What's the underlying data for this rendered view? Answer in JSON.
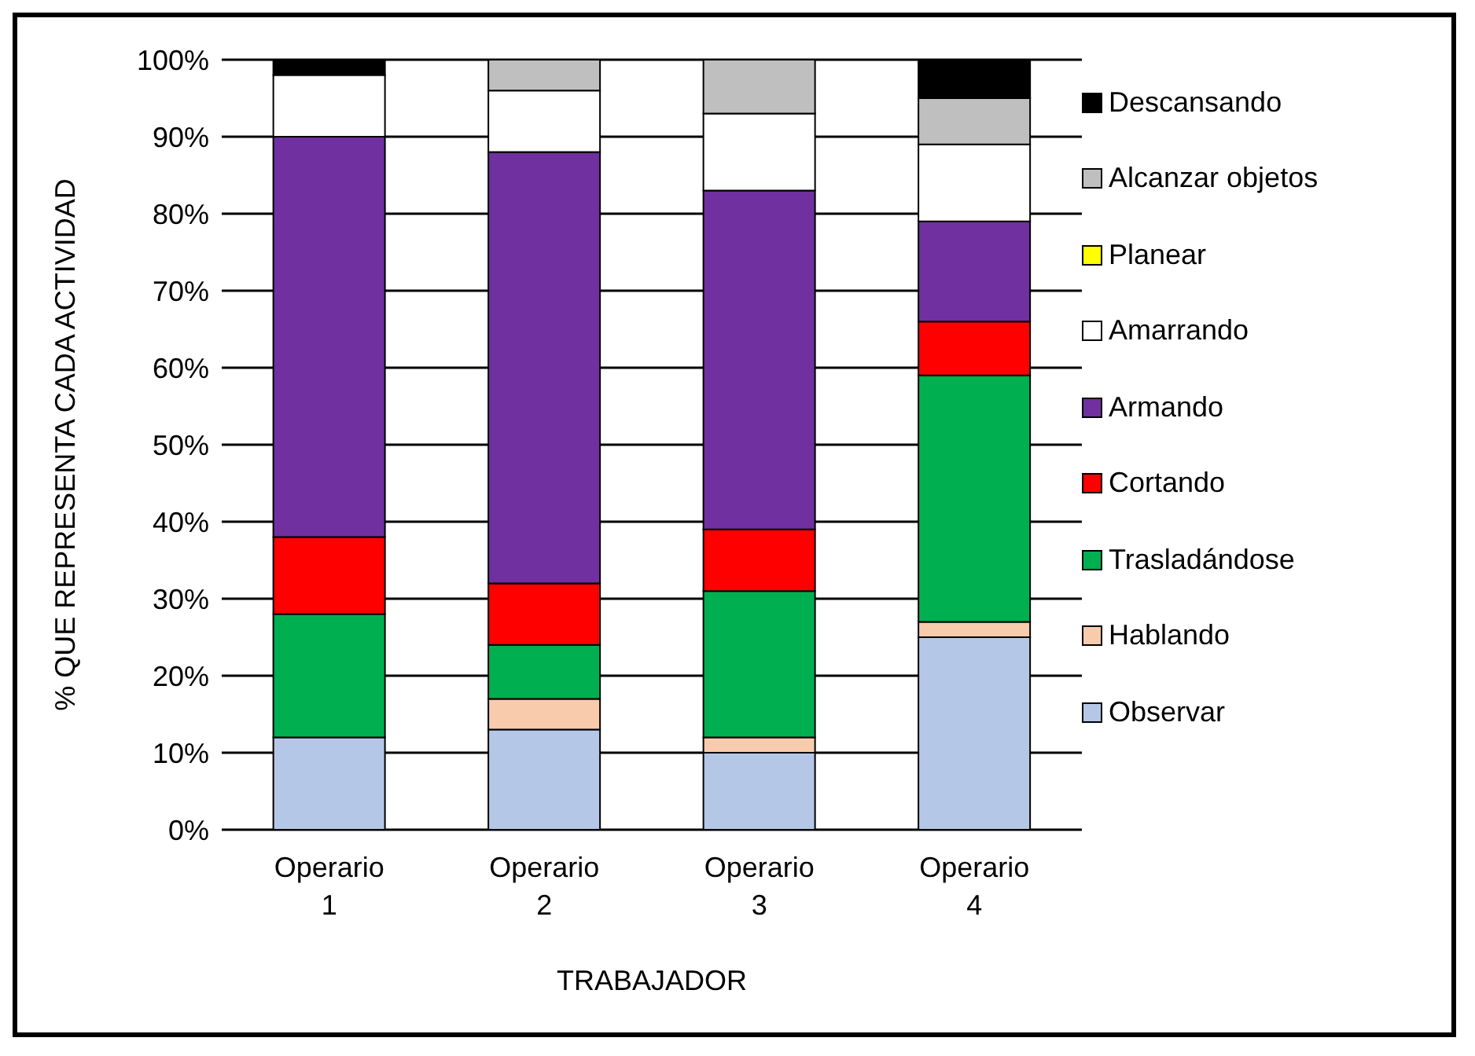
{
  "chart_data": {
    "type": "bar",
    "stacked": true,
    "xlabel": "TRABAJADOR",
    "ylabel": "% QUE REPRESENTA CADA ACTIVIDAD",
    "categories": [
      "Operario 1",
      "Operario 2",
      "Operario 3",
      "Operario 4"
    ],
    "series": [
      {
        "name": "Observar",
        "color": "#b4c7e7",
        "values": [
          12,
          13,
          10,
          25
        ]
      },
      {
        "name": "Hablando",
        "color": "#f8cbad",
        "values": [
          0,
          4,
          2,
          2
        ]
      },
      {
        "name": "Trasladándose",
        "color": "#00b050",
        "values": [
          16,
          7,
          19,
          32
        ]
      },
      {
        "name": "Cortando",
        "color": "#ff0000",
        "values": [
          10,
          8,
          8,
          7
        ]
      },
      {
        "name": "Armando",
        "color": "#7030a0",
        "values": [
          52,
          56,
          44,
          13
        ]
      },
      {
        "name": "Amarrando",
        "color": "#ffffff",
        "values": [
          8,
          8,
          10,
          10
        ]
      },
      {
        "name": "Planear",
        "color": "#ffff00",
        "values": [
          0,
          0,
          0,
          0
        ]
      },
      {
        "name": "Alcanzar objetos",
        "color": "#bfbfbf",
        "values": [
          0,
          4,
          7,
          6
        ]
      },
      {
        "name": "Descansando",
        "color": "#000000",
        "values": [
          2,
          0,
          0,
          5
        ]
      }
    ],
    "ylim": [
      0,
      100
    ],
    "yticks": [
      {
        "value": 0,
        "label": "0%"
      },
      {
        "value": 10,
        "label": "10%"
      },
      {
        "value": 20,
        "label": "20%"
      },
      {
        "value": 30,
        "label": "30%"
      },
      {
        "value": 40,
        "label": "40%"
      },
      {
        "value": 50,
        "label": "50%"
      },
      {
        "value": 60,
        "label": "60%"
      },
      {
        "value": 70,
        "label": "70%"
      },
      {
        "value": 80,
        "label": "80%"
      },
      {
        "value": 90,
        "label": "90%"
      },
      {
        "value": 100,
        "label": "100%"
      }
    ],
    "grid": "y",
    "legend": "right"
  }
}
